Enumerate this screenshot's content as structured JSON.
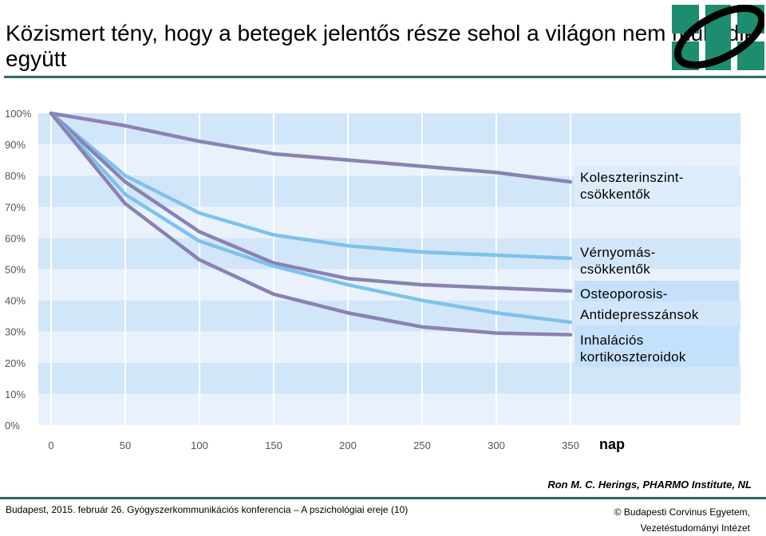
{
  "slide": {
    "title": "Közismert tény, hogy a betegek jelentős része sehol a világon nem működik együtt",
    "source": "Ron M. C. Herings, PHARMO Institute, NL",
    "footer_left": "Budapest, 2015. február 26. Gyógyszerkommunikációs konferencia – A pszichológiai ereje (10)",
    "footer_right_line1": "© Budapesti Corvinus Egyetem,",
    "footer_right_line2": "Vezetéstudományi Intézet"
  },
  "colors": {
    "accent_rule": "#2e6a63",
    "purple_series": "#8a82b2",
    "blue_series": "#7ec2ec",
    "band_light": "#e9f2fc",
    "band_dark": "#d2e6fa",
    "legend_box_light": "#ddecfb",
    "legend_box_dark": "#c5e0fa",
    "logo_green": "#1e8c6e"
  },
  "chart_data": {
    "type": "line",
    "x": [
      0,
      50,
      100,
      150,
      200,
      250,
      300,
      350
    ],
    "xlabel": "nap",
    "ylabel": "",
    "xlim": [
      0,
      350
    ],
    "ylim": [
      0,
      100
    ],
    "x_ticks": [
      "0",
      "50",
      "100",
      "150",
      "200",
      "250",
      "300",
      "350"
    ],
    "y_ticks": [
      "0%",
      "10%",
      "20%",
      "30%",
      "40%",
      "50%",
      "60%",
      "70%",
      "80%",
      "90%",
      "100%"
    ],
    "grid": true,
    "legend_position": "right",
    "series": [
      {
        "name": "Koleszterinszint-csökkentők",
        "color": "#8a82b2",
        "values": [
          100,
          96,
          91,
          87,
          85,
          83,
          81,
          78
        ]
      },
      {
        "name": "Vérnyomás-csökkentők",
        "color": "#7ec2ec",
        "values": [
          100,
          80,
          68,
          61,
          57.5,
          55.5,
          54.5,
          53.5
        ]
      },
      {
        "name": "Osteoporosis-",
        "color": "#8a82b2",
        "values": [
          100,
          78,
          62,
          52,
          47,
          45,
          44,
          43
        ]
      },
      {
        "name": "Antidepresszánsok",
        "color": "#7ec2ec",
        "values": [
          100,
          74,
          59,
          51,
          45,
          40,
          36,
          33
        ]
      },
      {
        "name": "Inhalációs kortikoszteroidok",
        "color": "#8a82b2",
        "values": [
          100,
          71,
          53,
          42,
          36,
          31.5,
          29.5,
          29
        ]
      }
    ],
    "legend_labels": [
      {
        "line1": "Koleszterinszint-",
        "line2": "csökkentők"
      },
      {
        "line1": "Vérnyomás-",
        "line2": "csökkentők"
      },
      {
        "line1": "Osteoporosis-",
        "line2": ""
      },
      {
        "line1": "Antidepresszánsok",
        "line2": ""
      },
      {
        "line1": "Inhalációs",
        "line2": "kortikoszteroidok"
      }
    ]
  }
}
